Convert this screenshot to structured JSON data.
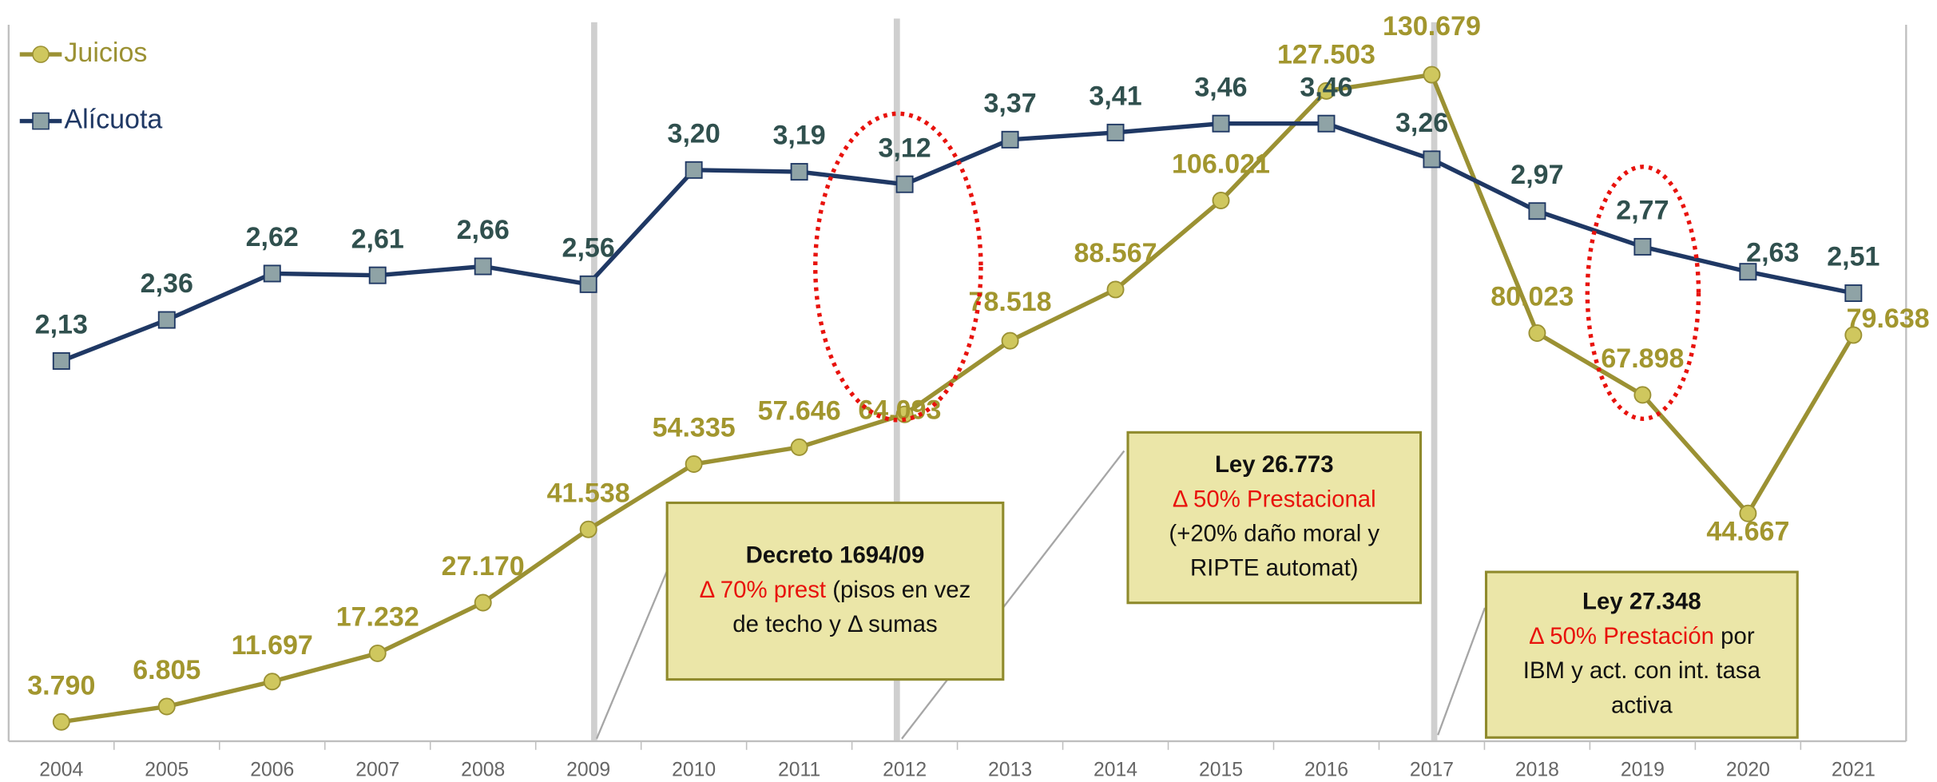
{
  "chart_data": {
    "type": "line",
    "categories": [
      "2004",
      "2005",
      "2006",
      "2007",
      "2008",
      "2009",
      "2010",
      "2011",
      "2012",
      "2013",
      "2014",
      "2015",
      "2016",
      "2017",
      "2018",
      "2019",
      "2020",
      "2021"
    ],
    "series": [
      {
        "name": "Juicios",
        "color": "#9b9133",
        "marker_color": "#cfc75e",
        "label_color": "#a2962e",
        "values": [
          3790,
          6805,
          11697,
          17232,
          27170,
          41538,
          54335,
          57646,
          64093,
          78518,
          88567,
          106021,
          127503,
          130679,
          80023,
          67898,
          44667,
          79638
        ],
        "value_labels": [
          "3.790",
          "6.805",
          "11.697",
          "17.232",
          "27.170",
          "41.538",
          "54.335",
          "57.646",
          "64.093",
          "78.518",
          "88.567",
          "106.021",
          "127.503",
          "130.679",
          "80.023",
          "67.898",
          "44.667",
          "79.638"
        ]
      },
      {
        "name": "Alícuota",
        "color": "#1f3864",
        "marker_color": "#8fa3a6",
        "label_color": "#30504e",
        "axis": "y2",
        "values": [
          2.13,
          2.36,
          2.62,
          2.61,
          2.66,
          2.56,
          3.2,
          3.19,
          3.12,
          3.37,
          3.41,
          3.46,
          3.46,
          3.26,
          2.97,
          2.77,
          2.63,
          2.51
        ],
        "value_labels": [
          "2,13",
          "2,36",
          "2,62",
          "2,61",
          "2,66",
          "2,56",
          "3,20",
          "3,19",
          "3,12",
          "3,37",
          "3,41",
          "3,46",
          "3,46",
          "3,26",
          "2,97",
          "2,77",
          "2,63",
          "2,51"
        ]
      }
    ],
    "ylim": [
      0,
      140000
    ],
    "y2lim": [
      0,
      4
    ],
    "legend": "top-left",
    "highlight_color": "#e8120c",
    "annotations": [
      {
        "title": "Decreto 1694/09",
        "highlight": "Δ 70% prest",
        "after": " (pisos en vez",
        "lines": [
          "de techo y Δ  sumas"
        ]
      },
      {
        "title": "Ley 26.773",
        "highlight": "Δ 50% Prestacional",
        "lines": [
          "(+20% daño moral y",
          "RIPTE automat)"
        ]
      },
      {
        "title": "Ley 27.348",
        "highlight": "Δ 50% Prestación",
        "after": " por",
        "lines": [
          "IBM y act. con int. tasa",
          "activa"
        ]
      }
    ]
  }
}
